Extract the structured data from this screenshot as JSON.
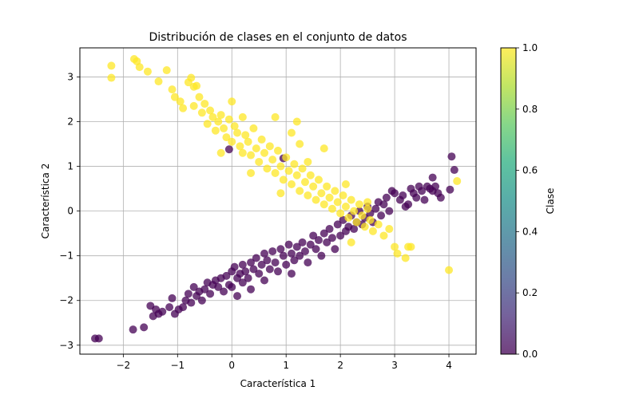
{
  "chart_data": {
    "type": "scatter",
    "title": "Distribución de clases en el conjunto de datos",
    "xlabel": "Característica 1",
    "ylabel": "Característica 2",
    "xlim": [
      -2.8,
      4.5
    ],
    "ylim": [
      -3.2,
      3.65
    ],
    "xticks": [
      -2,
      -1,
      0,
      1,
      2,
      3,
      4
    ],
    "yticks": [
      -3,
      -2,
      -1,
      0,
      1,
      2,
      3
    ],
    "grid": true,
    "marker_alpha": 0.75,
    "colorbar": {
      "label": "Clase",
      "range": [
        0.0,
        1.0
      ],
      "ticks": [
        "0.0",
        "0.2",
        "0.4",
        "0.6",
        "0.8",
        "1.0"
      ],
      "colormap": "viridis"
    },
    "series": [
      {
        "class_value": 0,
        "color": "#440154",
        "points": [
          [
            -2.52,
            -2.85
          ],
          [
            -2.45,
            -2.85
          ],
          [
            -1.82,
            -2.65
          ],
          [
            -1.62,
            -2.6
          ],
          [
            -1.45,
            -2.35
          ],
          [
            -1.5,
            -2.12
          ],
          [
            -1.4,
            -2.2
          ],
          [
            -1.35,
            -2.3
          ],
          [
            -1.28,
            -2.25
          ],
          [
            -1.15,
            -2.15
          ],
          [
            -1.1,
            -1.95
          ],
          [
            -1.05,
            -2.3
          ],
          [
            -0.98,
            -2.2
          ],
          [
            -0.9,
            -2.15
          ],
          [
            -0.85,
            -2.0
          ],
          [
            -0.8,
            -1.85
          ],
          [
            -0.75,
            -2.05
          ],
          [
            -0.7,
            -1.7
          ],
          [
            -0.65,
            -1.9
          ],
          [
            -0.6,
            -1.8
          ],
          [
            -0.55,
            -2.0
          ],
          [
            -0.5,
            -1.75
          ],
          [
            -0.45,
            -1.6
          ],
          [
            -0.4,
            -1.85
          ],
          [
            -0.35,
            -1.65
          ],
          [
            -0.3,
            -1.55
          ],
          [
            -0.25,
            -1.7
          ],
          [
            -0.2,
            -1.5
          ],
          [
            -0.15,
            -1.8
          ],
          [
            -0.1,
            -1.45
          ],
          [
            -0.05,
            -1.65
          ],
          [
            0.0,
            -1.35
          ],
          [
            0.0,
            -1.7
          ],
          [
            0.05,
            -1.25
          ],
          [
            0.1,
            -1.5
          ],
          [
            0.1,
            -1.9
          ],
          [
            0.15,
            -1.4
          ],
          [
            0.2,
            -1.6
          ],
          [
            0.2,
            -1.2
          ],
          [
            0.25,
            -1.35
          ],
          [
            0.3,
            -1.5
          ],
          [
            0.35,
            -1.15
          ],
          [
            0.35,
            -1.75
          ],
          [
            0.4,
            -1.3
          ],
          [
            0.45,
            -1.05
          ],
          [
            0.5,
            -1.4
          ],
          [
            0.55,
            -1.2
          ],
          [
            0.6,
            -0.95
          ],
          [
            0.6,
            -1.55
          ],
          [
            0.65,
            -1.1
          ],
          [
            0.7,
            -1.3
          ],
          [
            0.75,
            -0.9
          ],
          [
            0.8,
            -1.15
          ],
          [
            0.85,
            -1.35
          ],
          [
            0.9,
            -0.85
          ],
          [
            0.95,
            -1.0
          ],
          [
            1.0,
            -1.2
          ],
          [
            1.05,
            -0.75
          ],
          [
            1.1,
            -0.95
          ],
          [
            1.1,
            -1.4
          ],
          [
            1.15,
            -1.1
          ],
          [
            1.2,
            -0.8
          ],
          [
            1.25,
            -1.0
          ],
          [
            1.3,
            -0.7
          ],
          [
            1.35,
            -0.9
          ],
          [
            1.4,
            -1.15
          ],
          [
            1.45,
            -0.75
          ],
          [
            1.5,
            -0.55
          ],
          [
            1.55,
            -0.85
          ],
          [
            1.6,
            -0.65
          ],
          [
            1.65,
            -1.0
          ],
          [
            1.7,
            -0.5
          ],
          [
            1.75,
            -0.7
          ],
          [
            1.8,
            -0.4
          ],
          [
            1.85,
            -0.6
          ],
          [
            1.9,
            -0.85
          ],
          [
            1.95,
            -0.3
          ],
          [
            2.0,
            -0.55
          ],
          [
            2.05,
            -0.2
          ],
          [
            2.1,
            -0.45
          ],
          [
            2.15,
            -0.35
          ],
          [
            2.2,
            -0.1
          ],
          [
            2.25,
            -0.4
          ],
          [
            2.3,
            -0.25
          ],
          [
            2.35,
            0.0
          ],
          [
            2.4,
            -0.3
          ],
          [
            2.45,
            -0.15
          ],
          [
            2.5,
            0.1
          ],
          [
            2.55,
            -0.05
          ],
          [
            2.6,
            -0.25
          ],
          [
            2.65,
            0.05
          ],
          [
            2.7,
            0.2
          ],
          [
            2.75,
            -0.1
          ],
          [
            2.8,
            0.15
          ],
          [
            2.85,
            0.3
          ],
          [
            2.9,
            0.0
          ],
          [
            3.0,
            0.4
          ],
          [
            3.1,
            0.25
          ],
          [
            3.15,
            0.35
          ],
          [
            3.2,
            0.1
          ],
          [
            3.3,
            0.5
          ],
          [
            3.4,
            0.3
          ],
          [
            3.5,
            0.45
          ],
          [
            3.55,
            0.25
          ],
          [
            3.6,
            0.55
          ],
          [
            3.7,
            0.45
          ],
          [
            3.8,
            0.4
          ],
          [
            2.95,
            0.45
          ],
          [
            3.25,
            0.15
          ],
          [
            3.35,
            0.4
          ],
          [
            3.45,
            0.55
          ],
          [
            3.65,
            0.5
          ],
          [
            3.75,
            0.55
          ],
          [
            3.85,
            0.3
          ],
          [
            3.7,
            0.75
          ],
          [
            4.05,
            1.22
          ],
          [
            4.1,
            0.92
          ],
          [
            4.02,
            0.48
          ],
          [
            -0.05,
            1.38
          ],
          [
            0.95,
            1.18
          ]
        ]
      },
      {
        "class_value": 1,
        "color": "#fde725",
        "points": [
          [
            -2.22,
            3.25
          ],
          [
            -2.22,
            2.98
          ],
          [
            -1.75,
            3.35
          ],
          [
            -1.7,
            3.22
          ],
          [
            -1.55,
            3.12
          ],
          [
            -1.35,
            2.9
          ],
          [
            -1.2,
            3.15
          ],
          [
            -1.1,
            2.72
          ],
          [
            -1.05,
            2.55
          ],
          [
            -0.95,
            2.45
          ],
          [
            -0.9,
            2.3
          ],
          [
            -0.8,
            2.88
          ],
          [
            -0.75,
            2.98
          ],
          [
            -0.7,
            2.78
          ],
          [
            -0.65,
            2.8
          ],
          [
            -0.7,
            2.35
          ],
          [
            -0.6,
            2.55
          ],
          [
            -0.55,
            2.2
          ],
          [
            -0.5,
            2.4
          ],
          [
            -0.45,
            1.95
          ],
          [
            -0.4,
            2.25
          ],
          [
            -0.35,
            2.1
          ],
          [
            -0.3,
            1.8
          ],
          [
            -0.25,
            2.0
          ],
          [
            -0.2,
            2.15
          ],
          [
            -0.15,
            1.85
          ],
          [
            -0.1,
            1.65
          ],
          [
            -0.05,
            2.05
          ],
          [
            0.0,
            2.45
          ],
          [
            0.0,
            1.55
          ],
          [
            0.05,
            1.9
          ],
          [
            0.1,
            1.75
          ],
          [
            0.15,
            1.45
          ],
          [
            0.2,
            2.1
          ],
          [
            0.2,
            1.3
          ],
          [
            0.25,
            1.7
          ],
          [
            0.3,
            1.55
          ],
          [
            0.35,
            1.25
          ],
          [
            0.4,
            1.85
          ],
          [
            0.45,
            1.4
          ],
          [
            0.5,
            1.1
          ],
          [
            0.55,
            1.6
          ],
          [
            0.6,
            1.3
          ],
          [
            0.65,
            0.95
          ],
          [
            0.7,
            1.45
          ],
          [
            0.75,
            1.15
          ],
          [
            0.8,
            0.85
          ],
          [
            0.85,
            1.35
          ],
          [
            0.9,
            1.0
          ],
          [
            0.95,
            0.7
          ],
          [
            1.0,
            1.2
          ],
          [
            1.05,
            0.9
          ],
          [
            1.1,
            0.6
          ],
          [
            1.15,
            1.05
          ],
          [
            1.2,
            0.8
          ],
          [
            1.25,
            0.45
          ],
          [
            1.3,
            0.95
          ],
          [
            1.35,
            0.65
          ],
          [
            1.4,
            0.35
          ],
          [
            1.45,
            0.8
          ],
          [
            1.5,
            0.55
          ],
          [
            1.55,
            0.25
          ],
          [
            1.6,
            0.7
          ],
          [
            1.65,
            0.4
          ],
          [
            1.7,
            0.15
          ],
          [
            1.75,
            0.55
          ],
          [
            1.8,
            0.3
          ],
          [
            1.85,
            0.05
          ],
          [
            1.9,
            0.45
          ],
          [
            1.95,
            0.2
          ],
          [
            2.0,
            -0.05
          ],
          [
            2.05,
            0.35
          ],
          [
            2.1,
            0.1
          ],
          [
            2.15,
            -0.15
          ],
          [
            2.2,
            0.25
          ],
          [
            2.25,
            0.0
          ],
          [
            2.3,
            -0.25
          ],
          [
            2.35,
            0.15
          ],
          [
            2.4,
            -0.1
          ],
          [
            2.45,
            -0.35
          ],
          [
            2.5,
            0.05
          ],
          [
            2.55,
            -0.2
          ],
          [
            2.6,
            -0.45
          ],
          [
            2.7,
            -0.3
          ],
          [
            2.8,
            -0.55
          ],
          [
            2.9,
            -0.4
          ],
          [
            3.0,
            -0.8
          ],
          [
            3.05,
            -0.95
          ],
          [
            3.2,
            -1.05
          ],
          [
            3.25,
            -0.8
          ],
          [
            3.3,
            -0.8
          ],
          [
            2.2,
            -0.7
          ],
          [
            4.0,
            -1.32
          ],
          [
            4.15,
            0.67
          ],
          [
            1.1,
            1.75
          ],
          [
            1.2,
            2.0
          ],
          [
            0.8,
            2.1
          ],
          [
            -1.8,
            3.4
          ],
          [
            1.7,
            1.4
          ],
          [
            1.25,
            1.5
          ],
          [
            0.35,
            0.85
          ],
          [
            -0.2,
            1.3
          ],
          [
            0.9,
            0.4
          ],
          [
            1.4,
            1.1
          ],
          [
            2.1,
            0.6
          ],
          [
            2.5,
            0.2
          ]
        ]
      }
    ]
  }
}
